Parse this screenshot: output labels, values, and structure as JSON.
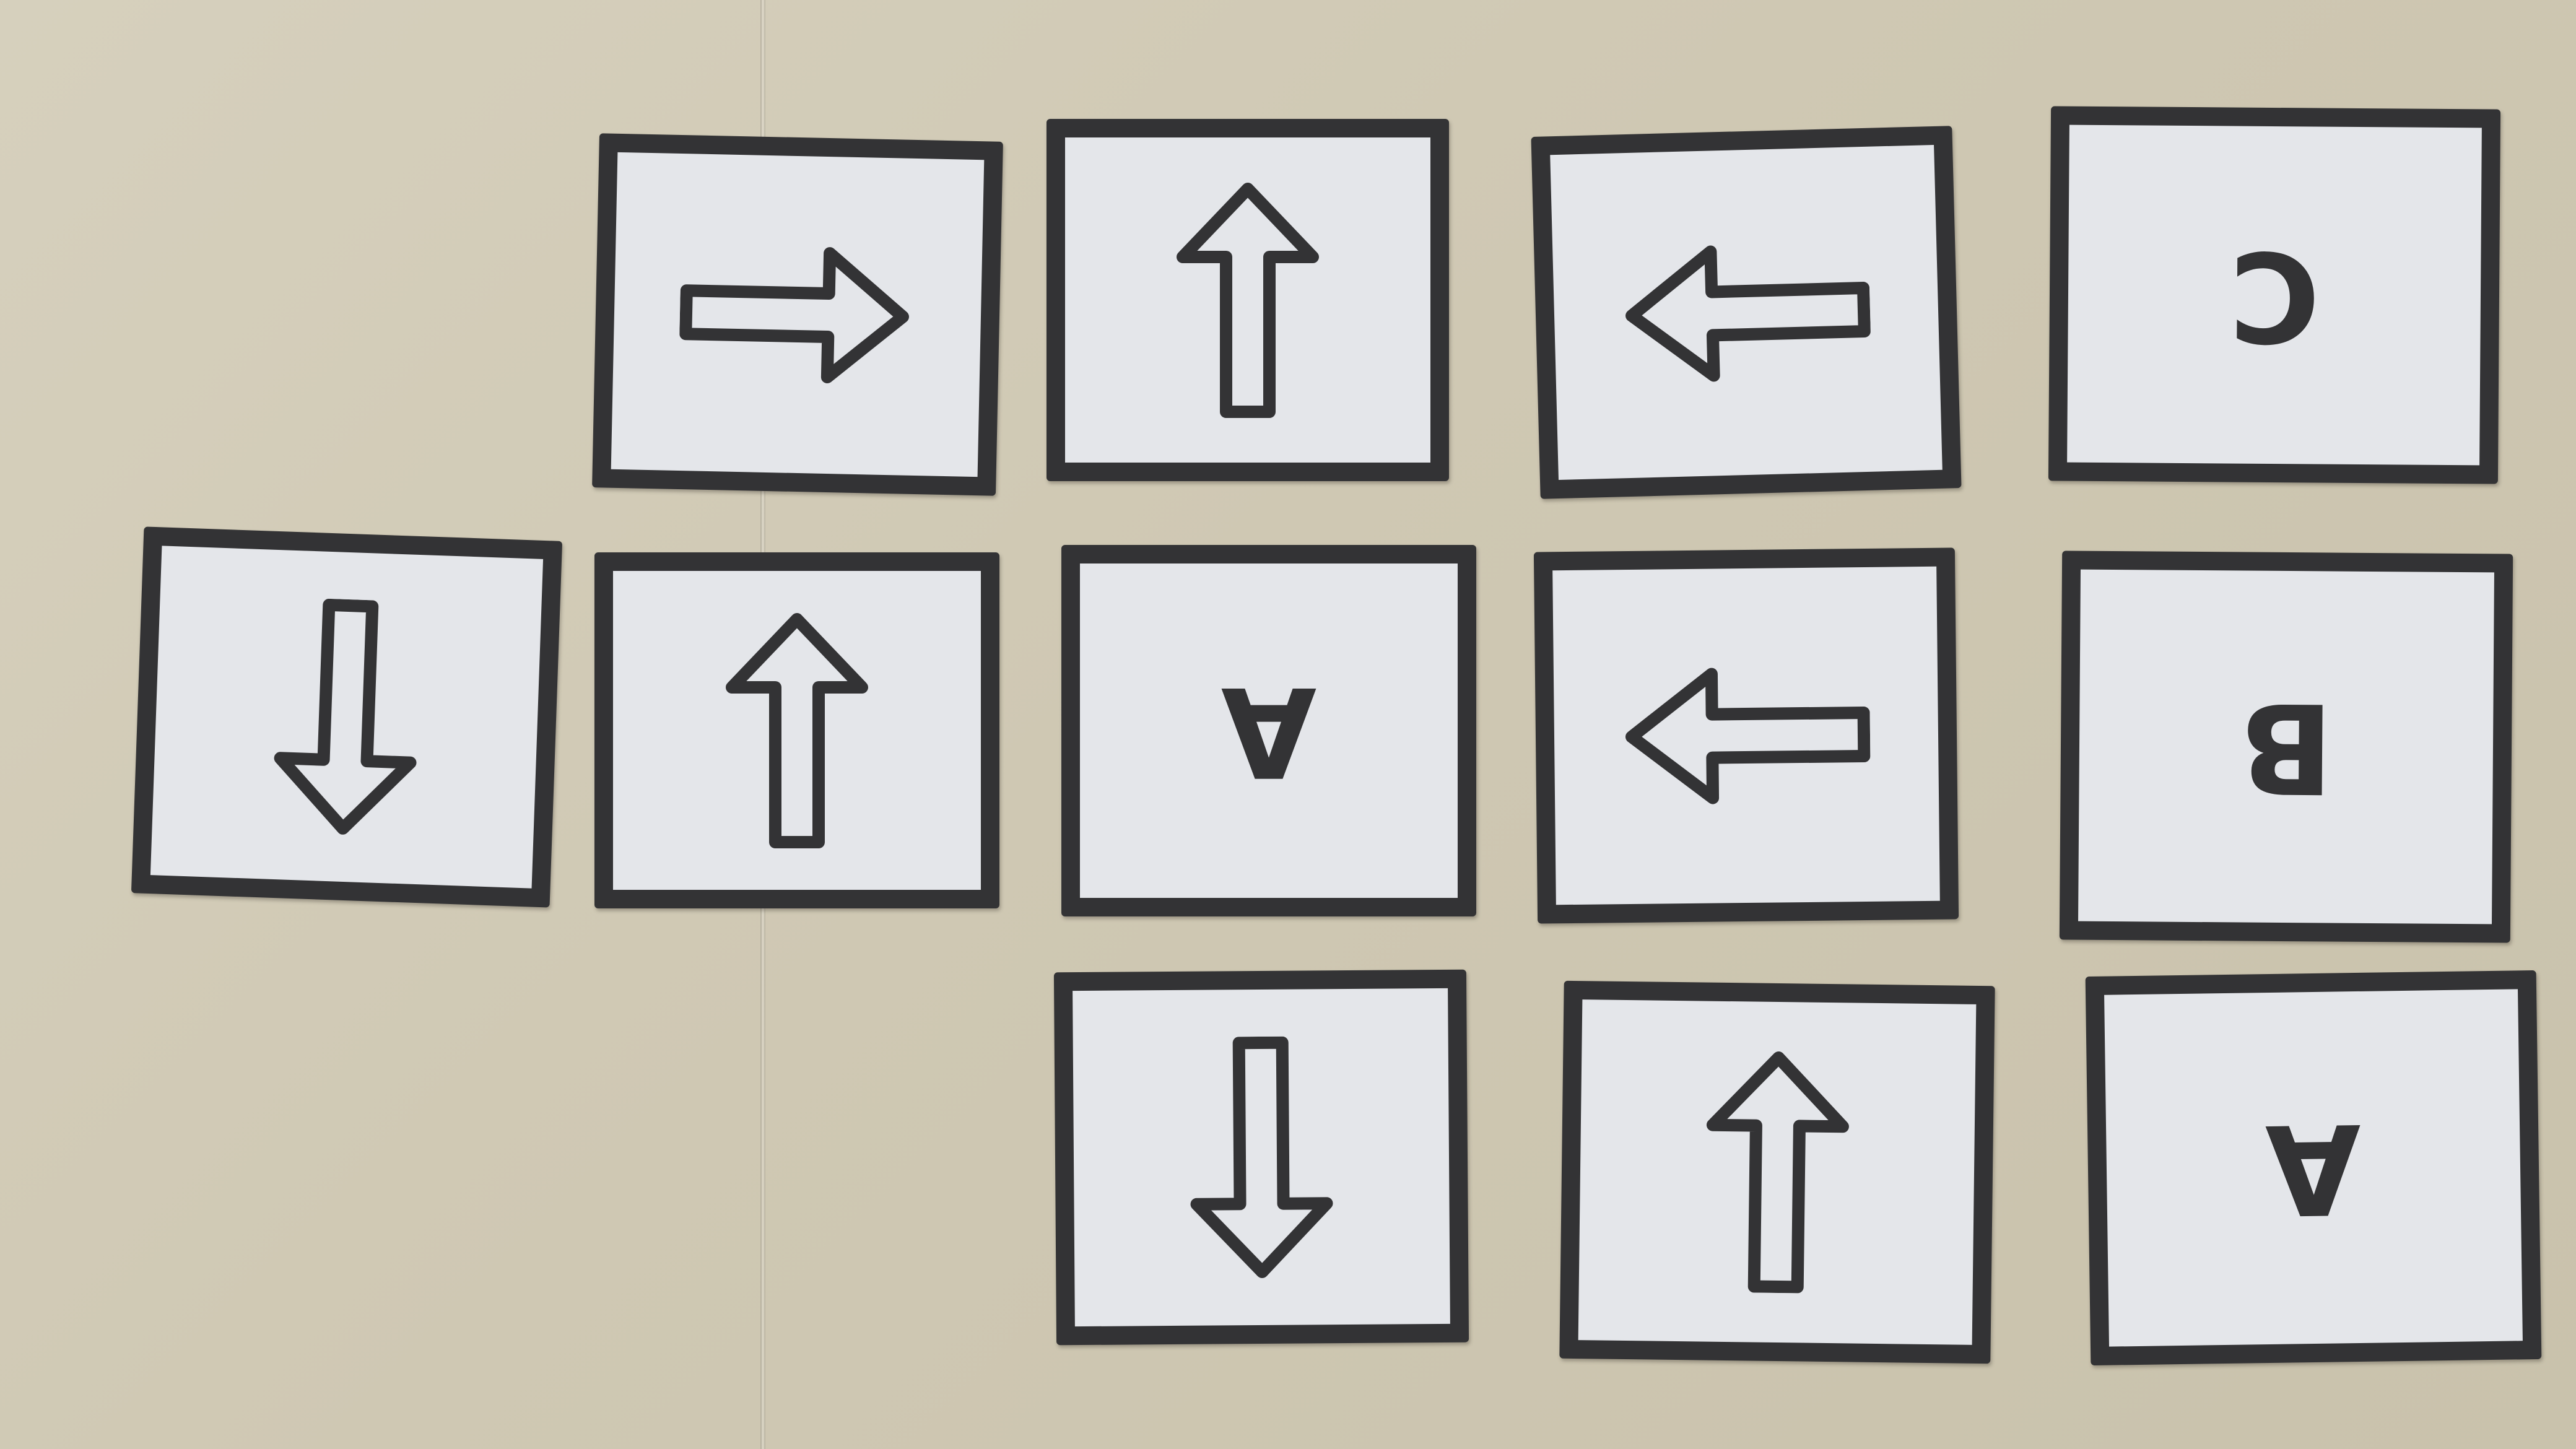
{
  "surface": {
    "color": "#cfc8b3",
    "card_fill": "#e4e6ea",
    "card_border": "#333335"
  },
  "cards": [
    {
      "row": 1,
      "col": 2,
      "content": "right-arrow-icon"
    },
    {
      "row": 1,
      "col": 3,
      "content": "up-arrow-icon"
    },
    {
      "row": 1,
      "col": 4,
      "content": "left-arrow-icon"
    },
    {
      "row": 1,
      "col": 5,
      "letter": "C"
    },
    {
      "row": 2,
      "col": 1,
      "content": "down-arrow-icon"
    },
    {
      "row": 2,
      "col": 2,
      "content": "up-arrow-icon"
    },
    {
      "row": 2,
      "col": 3,
      "letter": "A"
    },
    {
      "row": 2,
      "col": 4,
      "content": "left-arrow-icon"
    },
    {
      "row": 2,
      "col": 5,
      "letter": "B"
    },
    {
      "row": 3,
      "col": 3,
      "content": "down-arrow-icon"
    },
    {
      "row": 3,
      "col": 4,
      "content": "up-arrow-icon"
    },
    {
      "row": 3,
      "col": 5,
      "letter": "A"
    }
  ]
}
